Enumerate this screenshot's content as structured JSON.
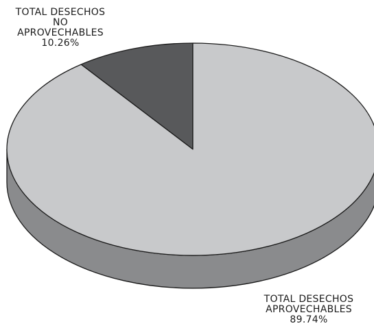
{
  "chart_data": {
    "type": "pie",
    "style": "3d",
    "start_angle": "12 o'clock",
    "slices": [
      {
        "name": "TOTAL DESECHOS NO APROVECHABLES",
        "value": 10.26,
        "label_lines": [
          "TOTAL DESECHOS",
          "NO",
          "APROVECHABLES"
        ],
        "pct_label": "10.26%",
        "color": "#58595b",
        "side_color": "#3e3f41"
      },
      {
        "name": "TOTAL DESECHOS APROVECHABLES",
        "value": 89.74,
        "label_lines": [
          "TOTAL DESECHOS",
          "APROVECHABLES"
        ],
        "pct_label": "89.74%",
        "color": "#c8c9cb",
        "side_color": "#8a8b8d"
      }
    ]
  }
}
